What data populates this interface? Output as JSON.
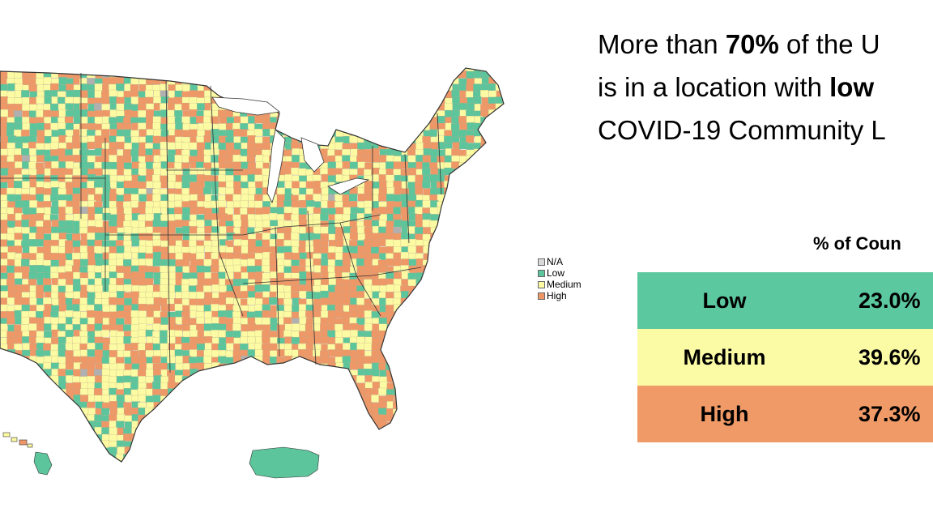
{
  "headline": {
    "line1_prefix": "More than ",
    "line1_bold": "70%",
    "line1_suffix": " of the U",
    "line2_prefix": "is in a location with ",
    "line2_bold": "low",
    "line3": "COVID-19 Community L"
  },
  "legend": {
    "items": [
      {
        "label": "N/A",
        "color": "#d9d9d9"
      },
      {
        "label": "Low",
        "color": "#5cc59c"
      },
      {
        "label": "Medium",
        "color": "#fcfaa2"
      },
      {
        "label": "High",
        "color": "#ee9868"
      }
    ]
  },
  "table": {
    "title": "% of Coun",
    "rows": [
      {
        "level": "Low",
        "value": "23.0%",
        "color": "#5cc89f"
      },
      {
        "level": "Medium",
        "value": "39.6%",
        "color": "#fcfba5"
      },
      {
        "level": "High",
        "value": "37.3%",
        "color": "#ef9a67"
      }
    ]
  },
  "map": {
    "region": "United States counties with Hawaii and Puerto Rico insets",
    "colors": {
      "low": "#5cc59c",
      "medium": "#fcfaa2",
      "high": "#ee9868",
      "na": "#b0b0b0",
      "border": "#333333"
    }
  }
}
